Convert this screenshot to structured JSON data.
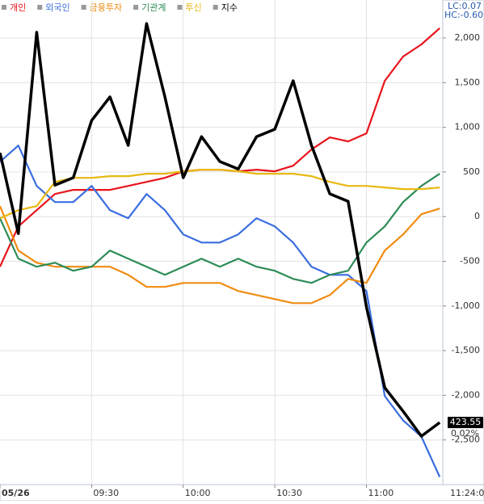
{
  "chart_data": {
    "type": "line",
    "x": [
      0,
      6,
      12,
      18,
      24,
      30,
      36,
      42,
      48,
      54,
      60,
      66,
      72,
      78,
      84,
      90,
      96,
      102,
      108,
      114,
      120,
      126,
      132,
      138,
      144
    ],
    "xlim": [
      0,
      145
    ],
    "xticks": [
      {
        "value": 0,
        "label": "05/26"
      },
      {
        "value": 30,
        "label": "09:30"
      },
      {
        "value": 60,
        "label": "10:00"
      },
      {
        "value": 90,
        "label": "10:30"
      },
      {
        "value": 120,
        "label": "11:00"
      }
    ],
    "last_time_label": "11:24:0",
    "ylim": [
      -3000,
      2425
    ],
    "yticks": [
      {
        "value": 2000,
        "label": "2,000"
      },
      {
        "value": 1500,
        "label": "1,500"
      },
      {
        "value": 1000,
        "label": "1,000"
      },
      500,
      0,
      -500,
      {
        "value": -1000,
        "label": "-1,000"
      },
      {
        "value": -1500,
        "label": "-1,500"
      },
      {
        "value": -2000,
        "label": "-2,000"
      },
      {
        "value": -2500,
        "label": "-2,500"
      }
    ],
    "y2lim": [
      423.05,
      426.95
    ],
    "grid": true,
    "lc_label": "LC:0.07",
    "hc_label": "HC:-0.60",
    "last_value_label": "423.55",
    "last_change_label": "0.02%",
    "series": [
      {
        "name": "개인",
        "color": "#e8141b",
        "values": [
          -561,
          -109,
          72,
          253,
          299,
          299,
          299,
          344,
          389,
          434,
          507,
          525,
          525,
          507,
          525,
          507,
          570,
          751,
          887,
          842,
          932,
          1520,
          1792,
          1928,
          2109
        ]
      },
      {
        "name": "외국인",
        "color": "#3a6ee0",
        "values": [
          615,
          796,
          344,
          163,
          163,
          344,
          72,
          -18,
          253,
          72,
          -199,
          -290,
          -290,
          -199,
          -18,
          -109,
          -290,
          -561,
          -652,
          -652,
          -833,
          -2009,
          -2281,
          -2462,
          -2914
        ]
      },
      {
        "name": "금융투자",
        "color": "#f08c12",
        "values": [
          118,
          -380,
          -516,
          -561,
          -561,
          -561,
          -561,
          -652,
          -787,
          -787,
          -742,
          -742,
          -742,
          -833,
          -878,
          -923,
          -968,
          -968,
          -878,
          -697,
          -742,
          -380,
          -199,
          27,
          90
        ]
      },
      {
        "name": "기관계",
        "color": "#2e8b57",
        "values": [
          -18,
          -471,
          -561,
          -516,
          -606,
          -561,
          -380,
          -471,
          -561,
          -652,
          -561,
          -471,
          -561,
          -471,
          -561,
          -606,
          -697,
          -742,
          -652,
          -606,
          -290,
          -109,
          163,
          344,
          480
        ]
      },
      {
        "name": "투신",
        "color": "#e8b812",
        "values": [
          -18,
          72,
          118,
          389,
          434,
          434,
          453,
          453,
          480,
          480,
          507,
          525,
          525,
          507,
          480,
          480,
          480,
          453,
          389,
          344,
          344,
          326,
          308,
          308,
          326
        ]
      },
      {
        "name": "지수",
        "color": "#000000",
        "axis": "y2",
        "values": [
          425.72,
          425.07,
          426.69,
          425.46,
          425.52,
          425.98,
          426.17,
          425.78,
          426.76,
          426.17,
          425.52,
          425.85,
          425.65,
          425.59,
          425.85,
          425.91,
          426.3,
          425.78,
          425.39,
          425.33,
          424.48,
          423.83,
          423.64,
          423.44,
          423.55
        ]
      }
    ]
  }
}
